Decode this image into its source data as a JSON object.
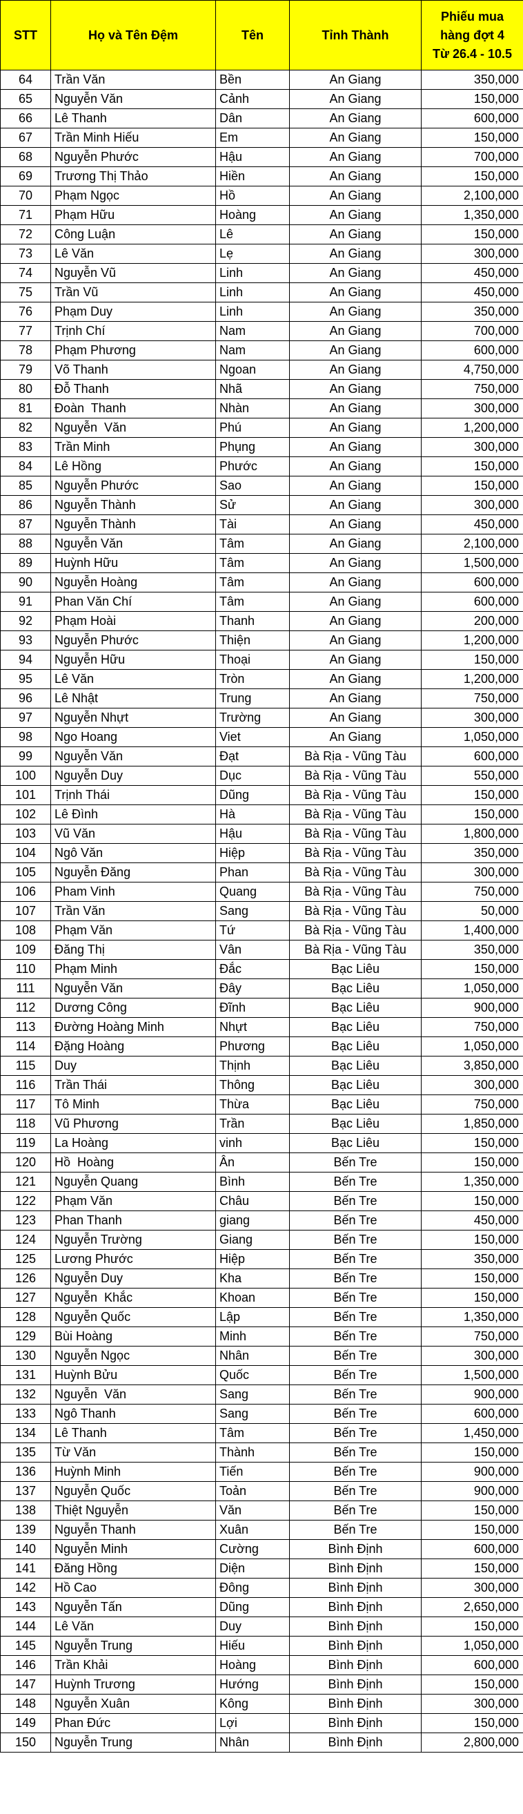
{
  "colors": {
    "header_bg": "#FFFF00",
    "header_text": "#000000",
    "grid_line": "#000000",
    "cell_bg": "#FFFFFF"
  },
  "table": {
    "columns": [
      {
        "key": "stt",
        "label": "STT"
      },
      {
        "key": "ho",
        "label": "Họ và Tên Đệm"
      },
      {
        "key": "ten",
        "label": "Tên"
      },
      {
        "key": "tinh",
        "label": "Tỉnh Thành"
      },
      {
        "key": "phieu",
        "label": "Phiếu mua\nhàng đợt 4\nTừ 26.4 - 10.5"
      }
    ],
    "rows": [
      [
        "64",
        "Trần Văn",
        "Bền",
        "An Giang",
        "350,000"
      ],
      [
        "65",
        "Nguyễn Văn",
        "Cảnh",
        "An Giang",
        "150,000"
      ],
      [
        "66",
        "Lê Thanh",
        "Dân",
        "An Giang",
        "600,000"
      ],
      [
        "67",
        "Trần Minh Hiếu",
        "Em",
        "An Giang",
        "150,000"
      ],
      [
        "68",
        "Nguyễn Phước",
        "Hậu",
        "An Giang",
        "700,000"
      ],
      [
        "69",
        "Trương Thị Thảo",
        "Hiền",
        "An Giang",
        "150,000"
      ],
      [
        "70",
        "Phạm Ngọc",
        "Hồ",
        "An Giang",
        "2,100,000"
      ],
      [
        "71",
        "Phạm Hữu",
        "Hoàng",
        "An Giang",
        "1,350,000"
      ],
      [
        "72",
        "Công Luận",
        "Lê",
        "An Giang",
        "150,000"
      ],
      [
        "73",
        "Lê Văn",
        "Lẹ",
        "An Giang",
        "300,000"
      ],
      [
        "74",
        "Nguyễn Vũ",
        "Linh",
        "An Giang",
        "450,000"
      ],
      [
        "75",
        "Trần Vũ",
        "Linh",
        "An Giang",
        "450,000"
      ],
      [
        "76",
        "Phạm Duy",
        "Linh",
        "An Giang",
        "350,000"
      ],
      [
        "77",
        "Trịnh Chí",
        "Nam",
        "An Giang",
        "700,000"
      ],
      [
        "78",
        "Phạm Phương",
        "Nam",
        "An Giang",
        "600,000"
      ],
      [
        "79",
        "Võ Thanh",
        "Ngoan",
        "An Giang",
        "4,750,000"
      ],
      [
        "80",
        "Đỗ Thanh",
        "Nhã",
        "An Giang",
        "750,000"
      ],
      [
        "81",
        "Đoàn  Thanh",
        "Nhàn",
        "An Giang",
        "300,000"
      ],
      [
        "82",
        "Nguyễn  Văn",
        "Phú",
        "An Giang",
        "1,200,000"
      ],
      [
        "83",
        "Trần Minh",
        "Phụng",
        "An Giang",
        "300,000"
      ],
      [
        "84",
        "Lê Hồng",
        "Phước",
        "An Giang",
        "150,000"
      ],
      [
        "85",
        "Nguyễn Phước",
        "Sao",
        "An Giang",
        "150,000"
      ],
      [
        "86",
        "Nguyễn Thành",
        "Sử",
        "An Giang",
        "300,000"
      ],
      [
        "87",
        "Nguyễn Thành",
        "Tài",
        "An Giang",
        "450,000"
      ],
      [
        "88",
        "Nguyễn Văn",
        "Tâm",
        "An Giang",
        "2,100,000"
      ],
      [
        "89",
        "Huỳnh Hữu",
        "Tâm",
        "An Giang",
        "1,500,000"
      ],
      [
        "90",
        "Nguyễn Hoàng",
        "Tâm",
        "An Giang",
        "600,000"
      ],
      [
        "91",
        "Phan Văn Chí",
        "Tâm",
        "An Giang",
        "600,000"
      ],
      [
        "92",
        "Phạm Hoài",
        "Thanh",
        "An Giang",
        "200,000"
      ],
      [
        "93",
        "Nguyễn Phước",
        "Thiện",
        "An Giang",
        "1,200,000"
      ],
      [
        "94",
        "Nguyễn Hữu",
        "Thoại",
        "An Giang",
        "150,000"
      ],
      [
        "95",
        "Lê Văn",
        "Tròn",
        "An Giang",
        "1,200,000"
      ],
      [
        "96",
        "Lê Nhật",
        "Trung",
        "An Giang",
        "750,000"
      ],
      [
        "97",
        "Nguyễn Nhựt",
        "Trường",
        "An Giang",
        "300,000"
      ],
      [
        "98",
        "Ngo Hoang",
        "Viet",
        "An Giang",
        "1,050,000"
      ],
      [
        "99",
        "Nguyễn Văn",
        "Đạt",
        "Bà Rịa - Vũng Tàu",
        "600,000"
      ],
      [
        "100",
        "Nguyễn Duy",
        "Dục",
        "Bà Rịa - Vũng Tàu",
        "550,000"
      ],
      [
        "101",
        "Trịnh Thái",
        "Dũng",
        "Bà Rịa - Vũng Tàu",
        "150,000"
      ],
      [
        "102",
        "Lê Đình",
        "Hà",
        "Bà Rịa - Vũng Tàu",
        "150,000"
      ],
      [
        "103",
        "Vũ Văn",
        "Hậu",
        "Bà Rịa - Vũng Tàu",
        "1,800,000"
      ],
      [
        "104",
        "Ngô Văn",
        "Hiệp",
        "Bà Rịa - Vũng Tàu",
        "350,000"
      ],
      [
        "105",
        "Nguyễn Đăng",
        "Phan",
        "Bà Rịa - Vũng Tàu",
        "300,000"
      ],
      [
        "106",
        "Pham Vinh",
        "Quang",
        "Bà Rịa - Vũng Tàu",
        "750,000"
      ],
      [
        "107",
        "Trần Văn",
        "Sang",
        "Bà Rịa - Vũng Tàu",
        "50,000"
      ],
      [
        "108",
        "Phạm Văn",
        "Tứ",
        "Bà Rịa - Vũng Tàu",
        "1,400,000"
      ],
      [
        "109",
        "Đăng Thị",
        "Vân",
        "Bà Rịa - Vũng Tàu",
        "350,000"
      ],
      [
        "110",
        "Phạm Minh",
        "Đắc",
        "Bạc Liêu",
        "150,000"
      ],
      [
        "111",
        "Nguyễn Văn",
        "Đây",
        "Bạc Liêu",
        "1,050,000"
      ],
      [
        "112",
        "Dương Công",
        "Đĩnh",
        "Bạc Liêu",
        "900,000"
      ],
      [
        "113",
        "Đường Hoàng Minh",
        "Nhựt",
        "Bạc Liêu",
        "750,000"
      ],
      [
        "114",
        "Đặng Hoàng",
        "Phương",
        "Bạc Liêu",
        "1,050,000"
      ],
      [
        "115",
        "Duy",
        "Thịnh",
        "Bạc Liêu",
        "3,850,000"
      ],
      [
        "116",
        "Trần Thái",
        "Thông",
        "Bạc Liêu",
        "300,000"
      ],
      [
        "117",
        "Tô Minh",
        "Thừa",
        "Bạc Liêu",
        "750,000"
      ],
      [
        "118",
        "Vũ Phương",
        "Trần",
        "Bạc Liêu",
        "1,850,000"
      ],
      [
        "119",
        "La Hoàng",
        "vinh",
        "Bạc Liêu",
        "150,000"
      ],
      [
        "120",
        "Hồ  Hoàng",
        "Ân",
        "Bến Tre",
        "150,000"
      ],
      [
        "121",
        "Nguyễn Quang",
        "Bình",
        "Bến Tre",
        "1,350,000"
      ],
      [
        "122",
        "Phạm Văn",
        "Châu",
        "Bến Tre",
        "150,000"
      ],
      [
        "123",
        "Phan Thanh",
        "giang",
        "Bến Tre",
        "450,000"
      ],
      [
        "124",
        "Nguyễn Trường",
        "Giang",
        "Bến Tre",
        "150,000"
      ],
      [
        "125",
        "Lương Phước",
        "Hiệp",
        "Bến Tre",
        "350,000"
      ],
      [
        "126",
        "Nguyễn Duy",
        "Kha",
        "Bến Tre",
        "150,000"
      ],
      [
        "127",
        "Nguyễn  Khắc",
        "Khoan",
        "Bến Tre",
        "150,000"
      ],
      [
        "128",
        "Nguyễn Quốc",
        "Lập",
        "Bến Tre",
        "1,350,000"
      ],
      [
        "129",
        "Bùi Hoàng",
        "Minh",
        "Bến Tre",
        "750,000"
      ],
      [
        "130",
        "Nguyễn Ngọc",
        "Nhân",
        "Bến Tre",
        "300,000"
      ],
      [
        "131",
        "Huỳnh Bửu",
        "Quốc",
        "Bến Tre",
        "1,500,000"
      ],
      [
        "132",
        "Nguyễn  Văn",
        "Sang",
        "Bến Tre",
        "900,000"
      ],
      [
        "133",
        "Ngô Thanh",
        "Sang",
        "Bến Tre",
        "600,000"
      ],
      [
        "134",
        "Lê Thanh",
        "Tâm",
        "Bến Tre",
        "1,450,000"
      ],
      [
        "135",
        "Từ Văn",
        "Thành",
        "Bến Tre",
        "150,000"
      ],
      [
        "136",
        "Huỳnh Minh",
        "Tiến",
        "Bến Tre",
        "900,000"
      ],
      [
        "137",
        "Nguyễn Quốc",
        "Toản",
        "Bến Tre",
        "900,000"
      ],
      [
        "138",
        "Thiệt Nguyễn",
        "Văn",
        "Bến Tre",
        "150,000"
      ],
      [
        "139",
        "Nguyễn Thanh",
        "Xuân",
        "Bến Tre",
        "150,000"
      ],
      [
        "140",
        "Nguyễn Minh",
        "Cường",
        "Bình Định",
        "600,000"
      ],
      [
        "141",
        "Đăng Hồng",
        "Diện",
        "Bình Định",
        "150,000"
      ],
      [
        "142",
        "Hồ Cao",
        "Đông",
        "Bình Định",
        "300,000"
      ],
      [
        "143",
        "Nguyễn Tấn",
        "Dũng",
        "Bình Định",
        "2,650,000"
      ],
      [
        "144",
        "Lê Văn",
        "Duy",
        "Bình Định",
        "150,000"
      ],
      [
        "145",
        "Nguyễn Trung",
        "Hiếu",
        "Bình Định",
        "1,050,000"
      ],
      [
        "146",
        "Trần Khải",
        "Hoàng",
        "Bình Định",
        "600,000"
      ],
      [
        "147",
        "Huỳnh Trương",
        "Hướng",
        "Bình Định",
        "150,000"
      ],
      [
        "148",
        "Nguyễn Xuân",
        "Kông",
        "Bình Định",
        "300,000"
      ],
      [
        "149",
        "Phan Đức",
        "Lợi",
        "Bình Định",
        "150,000"
      ],
      [
        "150",
        "Nguyễn Trung",
        "Nhân",
        "Bình Định",
        "2,800,000"
      ]
    ]
  }
}
